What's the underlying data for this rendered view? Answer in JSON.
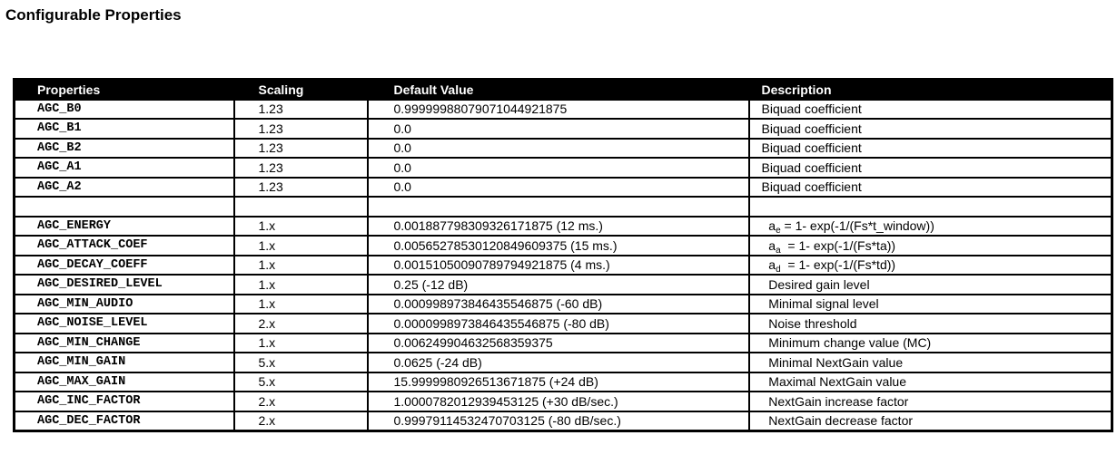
{
  "title": "Configurable Properties",
  "colors": {
    "header_bg": "#000000",
    "header_text": "#ffffff",
    "border": "#000000",
    "page_bg": "#ffffff",
    "text": "#000000"
  },
  "table": {
    "columns": [
      "Properties",
      "Scaling",
      "Default Value",
      "Description"
    ],
    "rows": [
      {
        "property": "AGC_B0",
        "scaling": "1.23",
        "default": "0.99999988079071044921875",
        "description": [
          {
            "t": "Biquad coefficient"
          }
        ]
      },
      {
        "property": "AGC_B1",
        "scaling": "1.23",
        "default": "0.0",
        "description": [
          {
            "t": "Biquad coefficient"
          }
        ]
      },
      {
        "property": "AGC_B2",
        "scaling": "1.23",
        "default": "0.0",
        "description": [
          {
            "t": "Biquad coefficient"
          }
        ]
      },
      {
        "property": "AGC_A1",
        "scaling": "1.23",
        "default": "0.0",
        "description": [
          {
            "t": "Biquad coefficient"
          }
        ]
      },
      {
        "property": "AGC_A2",
        "scaling": "1.23",
        "default": "0.0",
        "description": [
          {
            "t": "Biquad coefficient"
          }
        ]
      },
      {
        "property": "",
        "scaling": "",
        "default": "",
        "description": []
      },
      {
        "property": "AGC_ENERGY",
        "scaling": "1.x",
        "default": "0.001887798309326171875 (12 ms.)",
        "description": [
          {
            "t": "  a"
          },
          {
            "sub": "e"
          },
          {
            "t": " = 1- exp(-1/(Fs*t_window))"
          }
        ]
      },
      {
        "property": "AGC_ATTACK_COEF",
        "scaling": "1.x",
        "default": "0.00565278530120849609375 (15 ms.)",
        "description": [
          {
            "t": "  a"
          },
          {
            "sub": "a"
          },
          {
            "t": "  = 1- exp(-1/(Fs*ta))"
          }
        ]
      },
      {
        "property": "AGC_DECAY_COEFF",
        "scaling": "1.x",
        "default": "0.00151050090789794921875 (4 ms.)",
        "description": [
          {
            "t": "  a"
          },
          {
            "sub": "d"
          },
          {
            "t": "  = 1- exp(-1/(Fs*td))"
          }
        ]
      },
      {
        "property": "AGC_DESIRED_LEVEL",
        "scaling": "1.x",
        "default": "0.25 (-12 dB)",
        "description": [
          {
            "t": "  Desired gain level"
          }
        ]
      },
      {
        "property": "AGC_MIN_AUDIO",
        "scaling": "1.x",
        "default": "0.000998973846435546875 (-60 dB)",
        "description": [
          {
            "t": "  Minimal signal level"
          }
        ]
      },
      {
        "property": "AGC_NOISE_LEVEL",
        "scaling": "2.x",
        "default": "0.0000998973846435546875 (-80 dB)",
        "description": [
          {
            "t": "  Noise threshold"
          }
        ]
      },
      {
        "property": "AGC_MIN_CHANGE",
        "scaling": "1.x",
        "default": "0.006249904632568359375",
        "description": [
          {
            "t": "  Minimum change value (MC)"
          }
        ]
      },
      {
        "property": "AGC_MIN_GAIN",
        "scaling": "5.x",
        "default": "0.0625 (-24 dB)",
        "description": [
          {
            "t": "  Minimal NextGain value"
          }
        ]
      },
      {
        "property": "AGC_MAX_GAIN",
        "scaling": "5.x",
        "default": "15.9999980926513671875 (+24 dB)",
        "description": [
          {
            "t": "  Maximal NextGain value"
          }
        ]
      },
      {
        "property": "AGC_INC_FACTOR",
        "scaling": "2.x",
        "default": "1.0000782012939453125 (+30 dB/sec.)",
        "description": [
          {
            "t": "  NextGain increase factor"
          }
        ]
      },
      {
        "property": "AGC_DEC_FACTOR",
        "scaling": "2.x",
        "default": "0.99979114532470703125 (-80 dB/sec.)",
        "description": [
          {
            "t": "  NextGain decrease factor"
          }
        ]
      }
    ]
  }
}
